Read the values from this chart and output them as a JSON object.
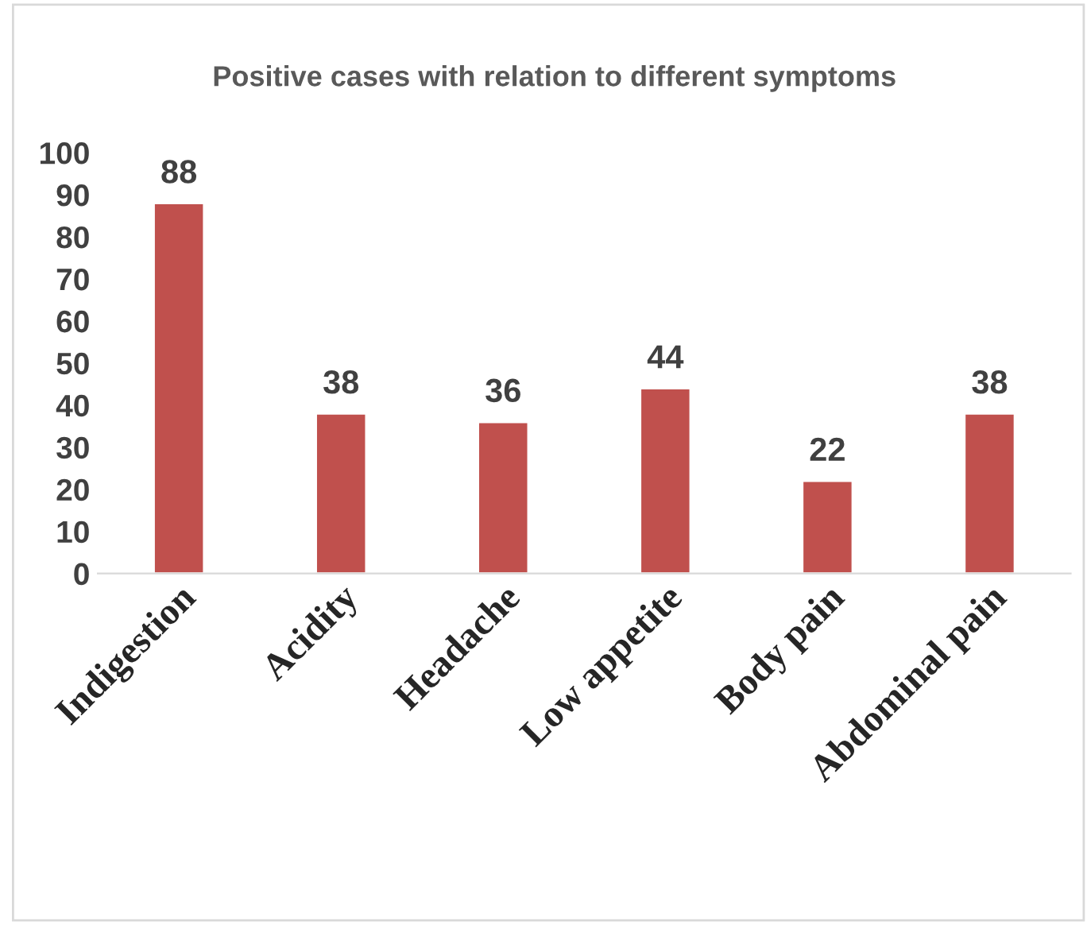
{
  "chart_data": {
    "type": "bar",
    "title": "Positive cases with relation to different symptoms",
    "categories": [
      "Indigestion",
      "Acidity",
      "Headache",
      "Low appetite",
      "Body pain",
      "Abdominal pain"
    ],
    "values": [
      88,
      38,
      36,
      44,
      22,
      38
    ],
    "color": "#c0504d",
    "ylim": [
      0,
      100
    ],
    "yticks": [
      0,
      10,
      20,
      30,
      40,
      50,
      60,
      70,
      80,
      90,
      100
    ],
    "grid": false,
    "data_labels": true
  }
}
